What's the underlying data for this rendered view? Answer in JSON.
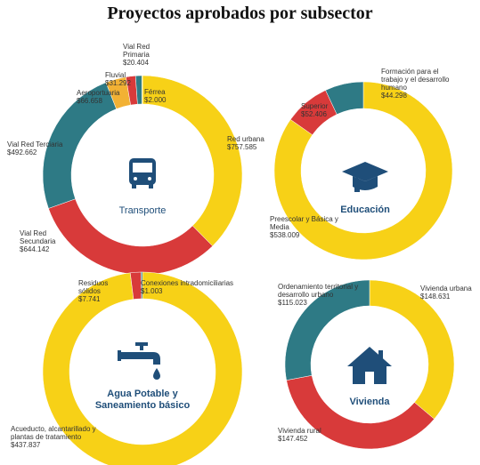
{
  "title": "Proyectos aprobados por subsector",
  "chart_data": [
    {
      "type": "pie",
      "title": "Transporte",
      "categories": [
        "Red urbana",
        "Vial Red Secundaria",
        "Vial Red Terciaria",
        "Aeroportuaria",
        "Fluvial",
        "Vial Red Primaria",
        "Férrea"
      ],
      "values": [
        757585,
        644142,
        492662,
        66658,
        31292,
        20404,
        2000
      ],
      "value_labels": [
        "$757.585",
        "$644.142",
        "$492.662",
        "$66.658",
        "$31.292",
        "$20.404",
        "$2.000"
      ],
      "colors": [
        "#f7d117",
        "#d83a3a",
        "#2e7a85",
        "#f2b134",
        "#d83a3a",
        "#2e7a85",
        "#f7d117"
      ]
    },
    {
      "type": "pie",
      "title": "Educación",
      "categories": [
        "Preescolar y Básica y Media",
        "Superior",
        "Formación para el trabajo y el desarrollo humano"
      ],
      "values": [
        538009,
        52406,
        44298
      ],
      "value_labels": [
        "$538.009",
        "$52.406",
        "$44.298"
      ],
      "colors": [
        "#f7d117",
        "#d83a3a",
        "#2e7a85"
      ]
    },
    {
      "type": "pie",
      "title": "Agua Potable y Saneamiento básico",
      "categories": [
        "Acueducto, alcantarillado y plantas de tratamiento",
        "Residuos sólidos",
        "Conexiones intradomiciliarias"
      ],
      "values": [
        437837,
        7741,
        1003
      ],
      "value_labels": [
        "$437.837",
        "$7.741",
        "$1.003"
      ],
      "colors": [
        "#f7d117",
        "#d83a3a",
        "#2e7a85"
      ]
    },
    {
      "type": "pie",
      "title": "Vivienda",
      "categories": [
        "Vivienda urbana",
        "Vivienda rural",
        "Ordenamiento territorial y desarrollo urbano"
      ],
      "values": [
        148631,
        147452,
        115023
      ],
      "value_labels": [
        "$148.631",
        "$147.452",
        "$115.023"
      ],
      "colors": [
        "#f7d117",
        "#d83a3a",
        "#2e7a85"
      ]
    }
  ]
}
